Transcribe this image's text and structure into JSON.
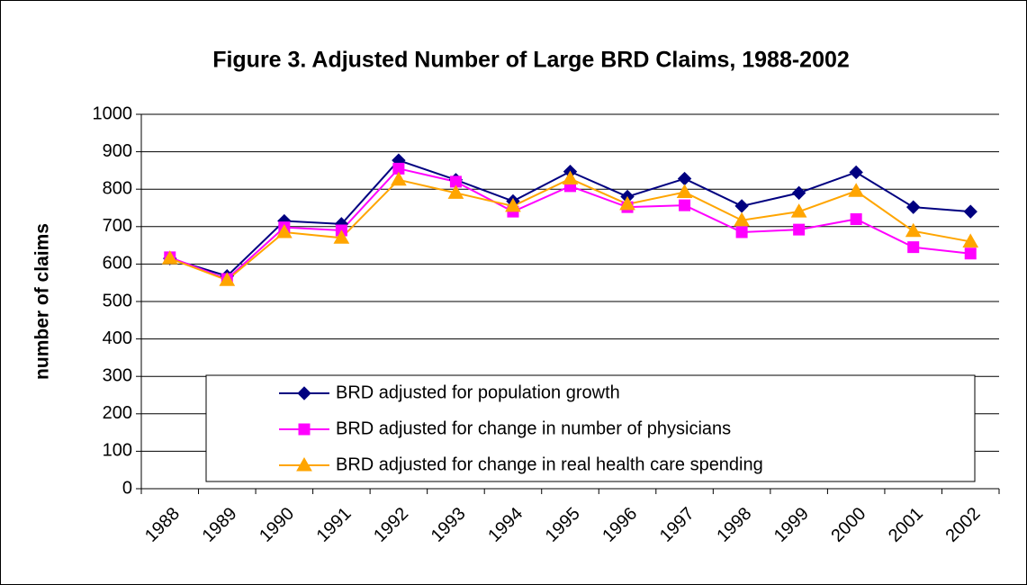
{
  "chart_data": {
    "type": "line",
    "title": "Figure 3.  Adjusted Number of Large BRD Claims, 1988-2002",
    "y_label": "number of claims",
    "categories": [
      "1988",
      "1989",
      "1990",
      "1991",
      "1992",
      "1993",
      "1994",
      "1995",
      "1996",
      "1997",
      "1998",
      "1999",
      "2000",
      "2001",
      "2002"
    ],
    "series": [
      {
        "name": "BRD adjusted for population growth",
        "color": "#000080",
        "marker": "diamond",
        "values": [
          615,
          568,
          715,
          707,
          877,
          825,
          768,
          847,
          780,
          828,
          755,
          790,
          845,
          752,
          740
        ]
      },
      {
        "name": "BRD adjusted for change in number of physicians",
        "color": "#ff00ff",
        "marker": "square",
        "values": [
          618,
          560,
          698,
          690,
          855,
          820,
          740,
          808,
          752,
          757,
          685,
          692,
          720,
          645,
          628
        ]
      },
      {
        "name": "BRD adjusted for change in real health care spending",
        "color": "#ffa500",
        "marker": "triangle",
        "values": [
          615,
          557,
          685,
          670,
          825,
          790,
          755,
          828,
          760,
          792,
          717,
          740,
          795,
          688,
          660
        ]
      }
    ],
    "ylim": [
      0,
      1000
    ],
    "yticks": [
      0,
      100,
      200,
      300,
      400,
      500,
      600,
      700,
      800,
      900,
      1000
    ],
    "grid": true,
    "legend_position": "bottom"
  }
}
